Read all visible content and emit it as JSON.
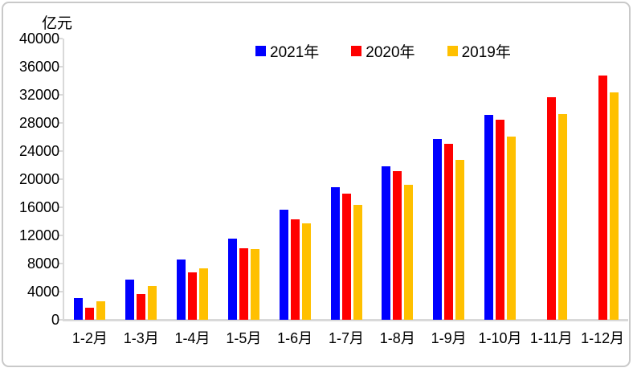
{
  "colors": {
    "axis": "#d9d9d9",
    "frame": "#c9c9c9",
    "text": "#000000",
    "series_2021": "#0000ff",
    "series_2020": "#ff0000",
    "series_2019": "#ffc000"
  },
  "chart_data": {
    "type": "bar",
    "title": "",
    "xlabel": "",
    "ylabel": "亿元",
    "ylim": [
      0,
      40000
    ],
    "ytick_step": 4000,
    "grid": false,
    "legend_position": "top-center",
    "categories": [
      "1-2月",
      "1-3月",
      "1-4月",
      "1-5月",
      "1-6月",
      "1-7月",
      "1-8月",
      "1-9月",
      "1-10月",
      "1-11月",
      "1-12月"
    ],
    "series": [
      {
        "name": "2021年",
        "color": "#0000ff",
        "values": [
          3100,
          5700,
          8600,
          11600,
          15700,
          18900,
          21800,
          25700,
          29100,
          null,
          null
        ]
      },
      {
        "name": "2020年",
        "color": "#ff0000",
        "values": [
          1750,
          3700,
          6800,
          10200,
          14300,
          17900,
          21100,
          25000,
          28500,
          31700,
          34800
        ]
      },
      {
        "name": "2019年",
        "color": "#ffc000",
        "values": [
          2650,
          4850,
          7350,
          10100,
          13700,
          16400,
          19200,
          22800,
          26100,
          29300,
          32400
        ]
      }
    ]
  }
}
